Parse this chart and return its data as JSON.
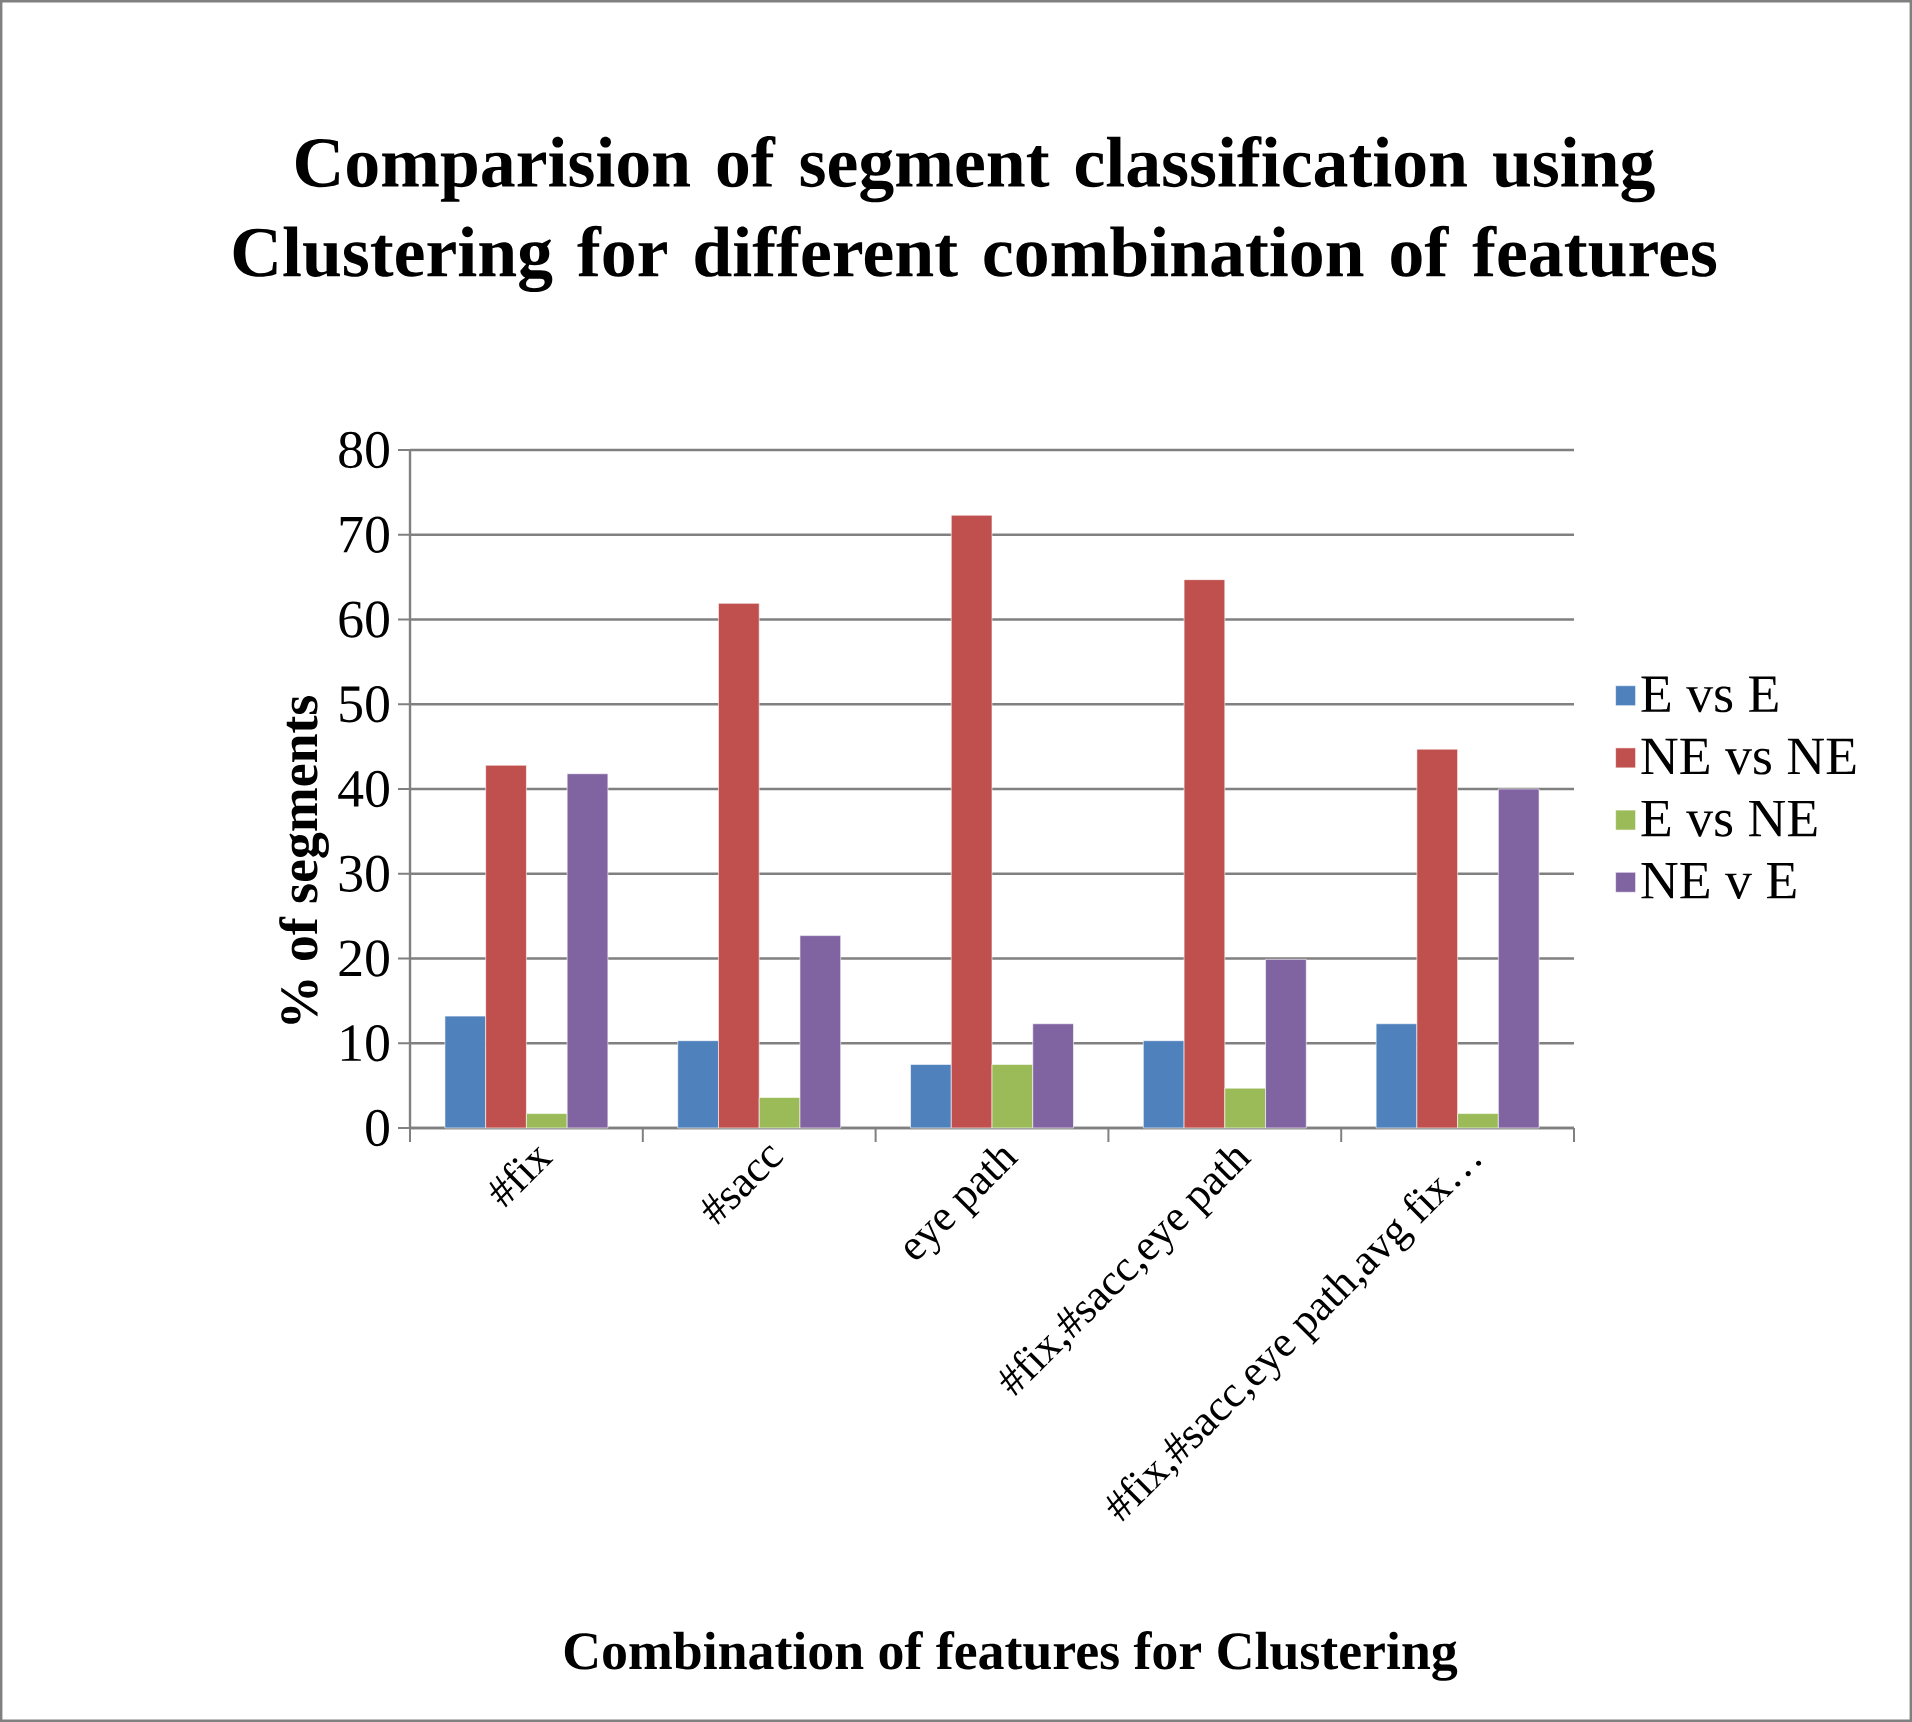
{
  "chart_data": {
    "type": "bar",
    "title": "Comparision of segment classification using Clustering for different combination of features",
    "xlabel": "Combination of features for Clustering",
    "ylabel": "% of segments",
    "categories": [
      "#fix",
      "#sacc",
      "eye path",
      "#fix,#sacc,eye path",
      "#fix,#sacc,eye path,avg fix…"
    ],
    "series": [
      {
        "name": "E vs E",
        "color": "#4f81bd",
        "values": [
          13.2,
          10.3,
          7.5,
          10.3,
          12.3
        ]
      },
      {
        "name": "NE vs NE",
        "color": "#c0504d",
        "values": [
          42.8,
          61.9,
          72.3,
          64.7,
          44.7
        ]
      },
      {
        "name": "E vs NE",
        "color": "#9bbb59",
        "values": [
          1.7,
          3.6,
          7.5,
          4.7,
          1.7
        ]
      },
      {
        "name": "NE v E",
        "color": "#8064a2",
        "values": [
          41.8,
          22.7,
          12.3,
          19.9,
          40.0
        ]
      }
    ],
    "ylim": [
      0,
      80
    ],
    "yticks": [
      0,
      10,
      20,
      30,
      40,
      50,
      60,
      70,
      80
    ],
    "grid": "y",
    "legend": "right"
  }
}
